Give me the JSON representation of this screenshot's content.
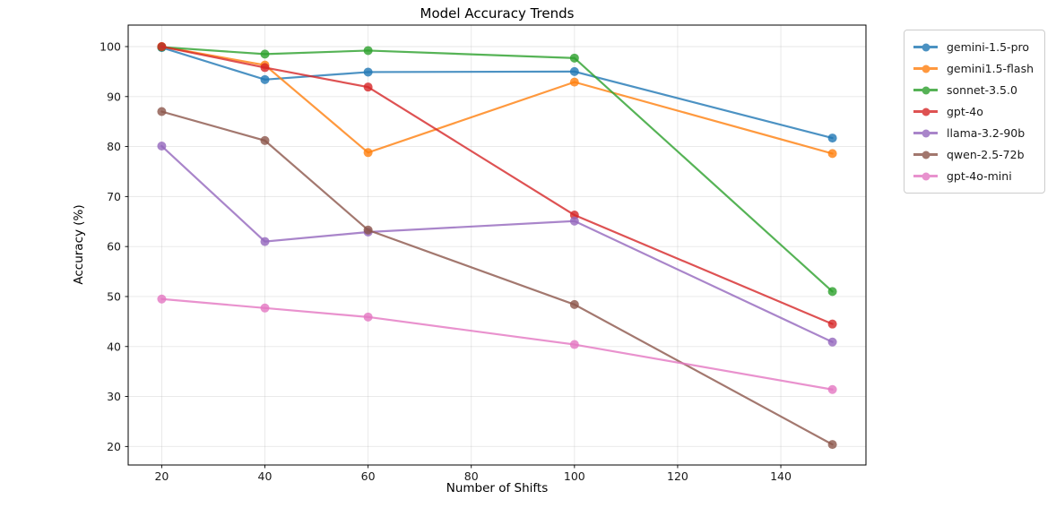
{
  "chart_data": {
    "type": "line",
    "title": "Model Accuracy Trends",
    "xlabel": "Number of Shifts",
    "ylabel": "Accuracy (%)",
    "x": [
      20,
      40,
      60,
      100,
      150
    ],
    "series": [
      {
        "name": "gemini-1.5-pro",
        "color": "#1f77b4",
        "values": [
          99.8,
          93.4,
          94.9,
          95.0,
          81.7
        ]
      },
      {
        "name": "gemini1.5-flash",
        "color": "#ff7f0e",
        "values": [
          100.0,
          96.3,
          78.8,
          92.9,
          78.6
        ]
      },
      {
        "name": "sonnet-3.5.0",
        "color": "#2ca02c",
        "values": [
          99.9,
          98.5,
          99.2,
          97.7,
          51.0
        ]
      },
      {
        "name": "gpt-4o",
        "color": "#d62728",
        "values": [
          100.0,
          95.8,
          91.9,
          66.3,
          44.5
        ]
      },
      {
        "name": "llama-3.2-90b",
        "color": "#9467bd",
        "values": [
          80.1,
          61.0,
          62.9,
          65.1,
          40.9
        ]
      },
      {
        "name": "qwen-2.5-72b",
        "color": "#8c564b",
        "values": [
          87.0,
          81.2,
          63.3,
          48.4,
          20.4
        ]
      },
      {
        "name": "gpt-4o-mini",
        "color": "#e377c2",
        "values": [
          49.5,
          47.7,
          45.9,
          40.4,
          31.4
        ]
      }
    ],
    "x_ticks": [
      20,
      40,
      60,
      80,
      100,
      120,
      140
    ],
    "y_ticks": [
      20,
      30,
      40,
      50,
      60,
      70,
      80,
      90,
      100
    ],
    "xlim": [
      13.5,
      156.5
    ],
    "ylim": [
      16.3,
      104.3
    ],
    "grid": true,
    "grid_color": "#b0b0b0",
    "grid_opacity": 0.3,
    "spine_color": "#000000",
    "line_opacity": 0.8,
    "line_width": 2.2,
    "marker_radius": 5,
    "legend_position": "outside-right"
  }
}
